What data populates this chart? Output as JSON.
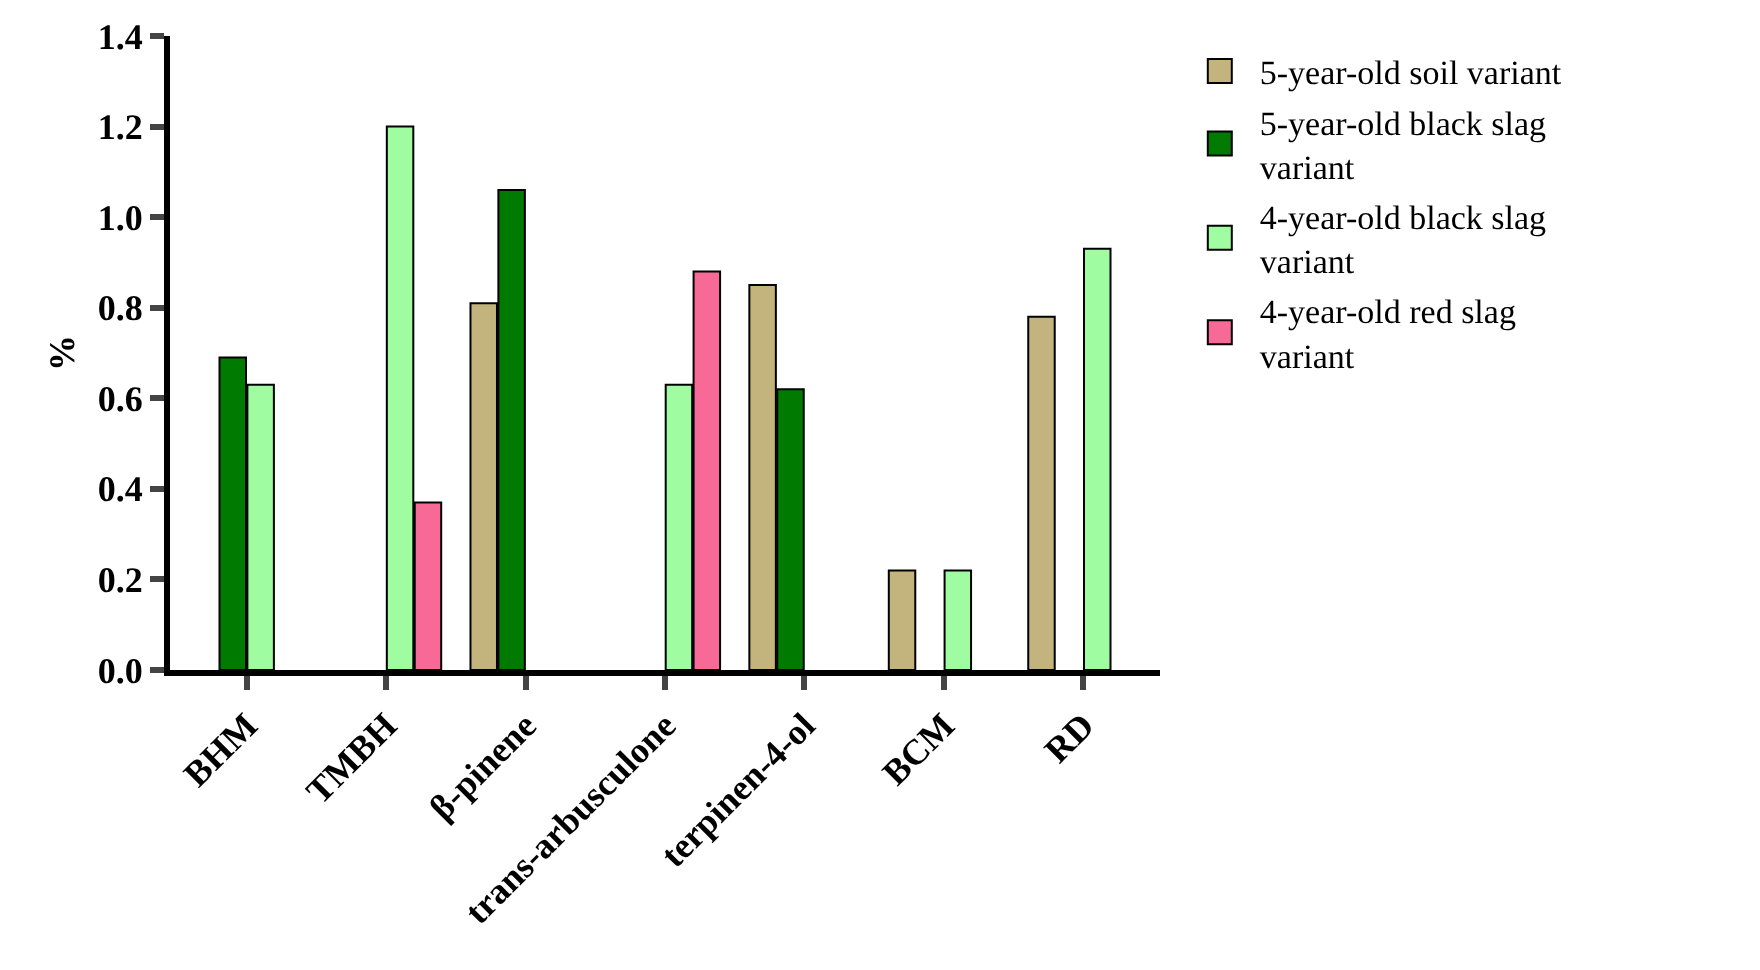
{
  "chart_data": {
    "type": "bar",
    "ylabel": "%",
    "categories": [
      "BHM",
      "TMBH",
      "β-pinene",
      "trans-arbusculone",
      "terpinen-4-ol",
      "BCM",
      "RD"
    ],
    "series": [
      {
        "name": "5-year-old soil variant",
        "color": "#c2b47c",
        "values": [
          null,
          null,
          0.81,
          null,
          0.85,
          0.22,
          0.78
        ]
      },
      {
        "name": "5-year-old black slag variant",
        "color": "#007a00",
        "values": [
          0.69,
          null,
          1.06,
          null,
          0.62,
          null,
          null
        ]
      },
      {
        "name": "4-year-old black slag variant",
        "color": "#a0fca0",
        "values": [
          0.63,
          1.2,
          null,
          0.63,
          null,
          0.22,
          0.93
        ]
      },
      {
        "name": "4-year-old red slag variant",
        "color": "#f76a98",
        "values": [
          null,
          0.37,
          null,
          0.88,
          null,
          null,
          null
        ]
      }
    ],
    "ylim": [
      0,
      1.4
    ],
    "yticks": [
      {
        "value": 0,
        "label": "0.0"
      },
      0.2,
      0.4,
      0.6,
      0.8,
      {
        "value": 1,
        "label": "1.0"
      },
      1.2,
      1.4
    ],
    "grid": false,
    "legend": "right"
  }
}
